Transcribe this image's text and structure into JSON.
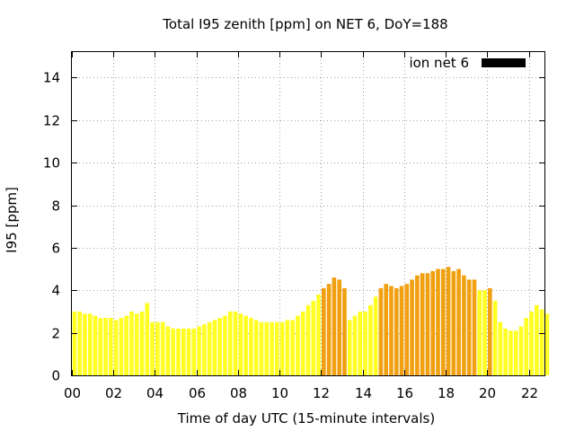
{
  "chart_data": {
    "type": "bar",
    "title": "Total I95 zenith [ppm] on NET 6, DoY=188",
    "xlabel": "Time of day UTC (15-minute intervals)",
    "ylabel": "I95 [ppm]",
    "ylim": [
      0,
      15.2
    ],
    "xlim": [
      0,
      22.75
    ],
    "interval_hours": 0.25,
    "bar_start_hour": 0,
    "x_ticks": [
      0,
      2,
      4,
      6,
      8,
      10,
      12,
      14,
      16,
      18,
      20,
      22
    ],
    "x_tick_labels": [
      "00",
      "02",
      "04",
      "06",
      "08",
      "10",
      "12",
      "14",
      "16",
      "18",
      "20",
      "22"
    ],
    "y_ticks": [
      0,
      2,
      4,
      6,
      8,
      10,
      12,
      14
    ],
    "y_tick_labels": [
      "0",
      "2",
      "4",
      "6",
      "8",
      "10",
      "12",
      "14"
    ],
    "grid": true,
    "legend": {
      "label": "ion net 6",
      "color": "#000000",
      "placement": "top-right"
    },
    "colors": {
      "yellow": "#ffff22",
      "orange": "#f0a010",
      "threshold": 4
    },
    "series": [
      {
        "values": [
          3.0,
          3.0,
          2.9,
          2.9,
          2.8,
          2.7,
          2.7,
          2.7,
          2.6,
          2.7,
          2.8,
          3.0,
          2.9,
          3.0,
          3.4,
          2.5,
          2.5,
          2.5,
          2.3,
          2.2,
          2.2,
          2.2,
          2.2,
          2.2,
          2.3,
          2.4,
          2.5,
          2.6,
          2.7,
          2.8,
          3.0,
          3.0,
          2.9,
          2.8,
          2.7,
          2.6,
          2.5,
          2.5,
          2.5,
          2.5,
          2.5,
          2.6,
          2.6,
          2.8,
          3.0,
          3.3,
          3.5,
          3.8,
          4.1,
          4.3,
          4.6,
          4.5,
          4.1,
          2.6,
          2.8,
          3.0,
          3.0,
          3.3,
          3.7,
          4.1,
          4.3,
          4.2,
          4.1,
          4.2,
          4.3,
          4.5,
          4.7,
          4.8,
          4.8,
          4.9,
          5.0,
          5.0,
          5.1,
          4.9,
          5.0,
          4.7,
          4.5,
          4.5,
          4.0,
          4.0,
          4.1,
          3.5,
          2.5,
          2.2,
          2.1,
          2.1,
          2.3,
          2.7,
          3.0,
          3.3,
          3.1,
          2.9
        ]
      }
    ]
  }
}
